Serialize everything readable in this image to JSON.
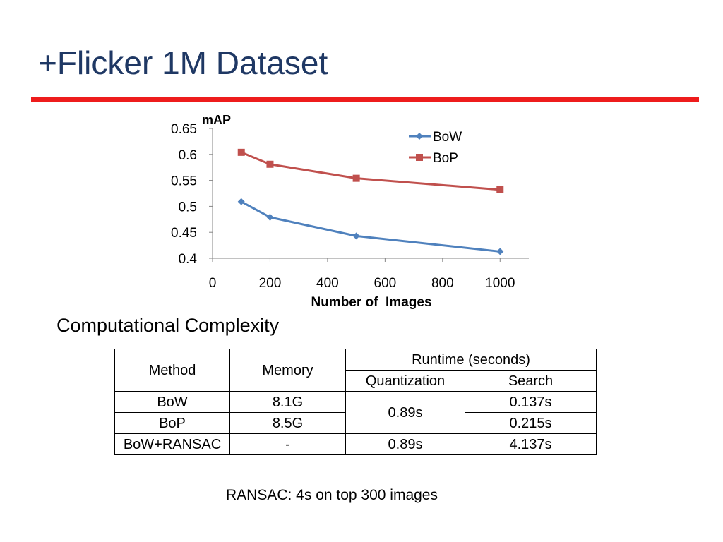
{
  "slide": {
    "title": "+Flicker 1M Dataset",
    "accent_color": "#ee1c1c",
    "title_color": "#1f3864"
  },
  "chart_data": {
    "type": "line",
    "title": "",
    "xlabel": "Number of  Images",
    "ylabel": "mAP",
    "xlim": [
      0,
      1100
    ],
    "ylim": [
      0.4,
      0.65
    ],
    "x_ticks": [
      0,
      200,
      400,
      600,
      800,
      1000
    ],
    "y_ticks": [
      0.4,
      0.45,
      0.5,
      0.55,
      0.6,
      0.65
    ],
    "x_tick_labels": [
      "0",
      "200",
      "400",
      "600",
      "800",
      "1000"
    ],
    "y_tick_labels": [
      "0.4",
      "0.45",
      "0.5",
      "0.55",
      "0.6",
      "0.65"
    ],
    "grid": false,
    "legend": "top-right",
    "series": [
      {
        "name": "BoW",
        "color": "#4f81bd",
        "marker": "diamond",
        "x": [
          100,
          200,
          500,
          1000
        ],
        "y": [
          0.509,
          0.479,
          0.443,
          0.413
        ]
      },
      {
        "name": "BoP",
        "color": "#c0504d",
        "marker": "square",
        "x": [
          100,
          200,
          500,
          1000
        ],
        "y": [
          0.604,
          0.581,
          0.554,
          0.532
        ]
      }
    ]
  },
  "complexity": {
    "heading": "Computational Complexity",
    "headers": {
      "method": "Method",
      "memory": "Memory",
      "runtime": "Runtime (seconds)",
      "quantization": "Quantization",
      "search": "Search"
    },
    "rows": [
      {
        "method": "BoW",
        "memory": "8.1G",
        "quantization": "0.89s",
        "search": "0.137s"
      },
      {
        "method": "BoP",
        "memory": "8.5G",
        "search": "0.215s"
      },
      {
        "method": "BoW+RANSAC",
        "memory": "-",
        "quantization": "0.89s",
        "search": "4.137s"
      }
    ]
  },
  "footnote": "RANSAC: 4s on top 300 images"
}
